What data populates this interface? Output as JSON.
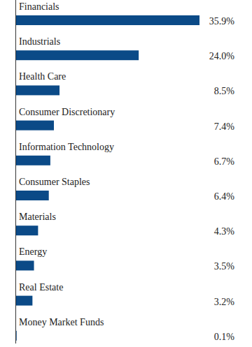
{
  "chart_data": {
    "type": "bar",
    "orientation": "horizontal",
    "categories": [
      "Financials",
      "Industrials",
      "Health Care",
      "Consumer Discretionary",
      "Information Technology",
      "Consumer Staples",
      "Materials",
      "Energy",
      "Real Estate",
      "Money Market Funds"
    ],
    "values": [
      35.9,
      24.0,
      8.5,
      7.4,
      6.7,
      6.4,
      4.3,
      3.5,
      3.2,
      0.1
    ],
    "value_labels": [
      "35.9%",
      "24.0%",
      "8.5%",
      "7.4%",
      "6.7%",
      "6.4%",
      "4.3%",
      "3.5%",
      "3.2%",
      "0.1%"
    ],
    "color": "#0b4a87",
    "xlim": [
      0,
      35.9
    ],
    "data_labels": true,
    "tick_labels": false,
    "grid": false
  }
}
